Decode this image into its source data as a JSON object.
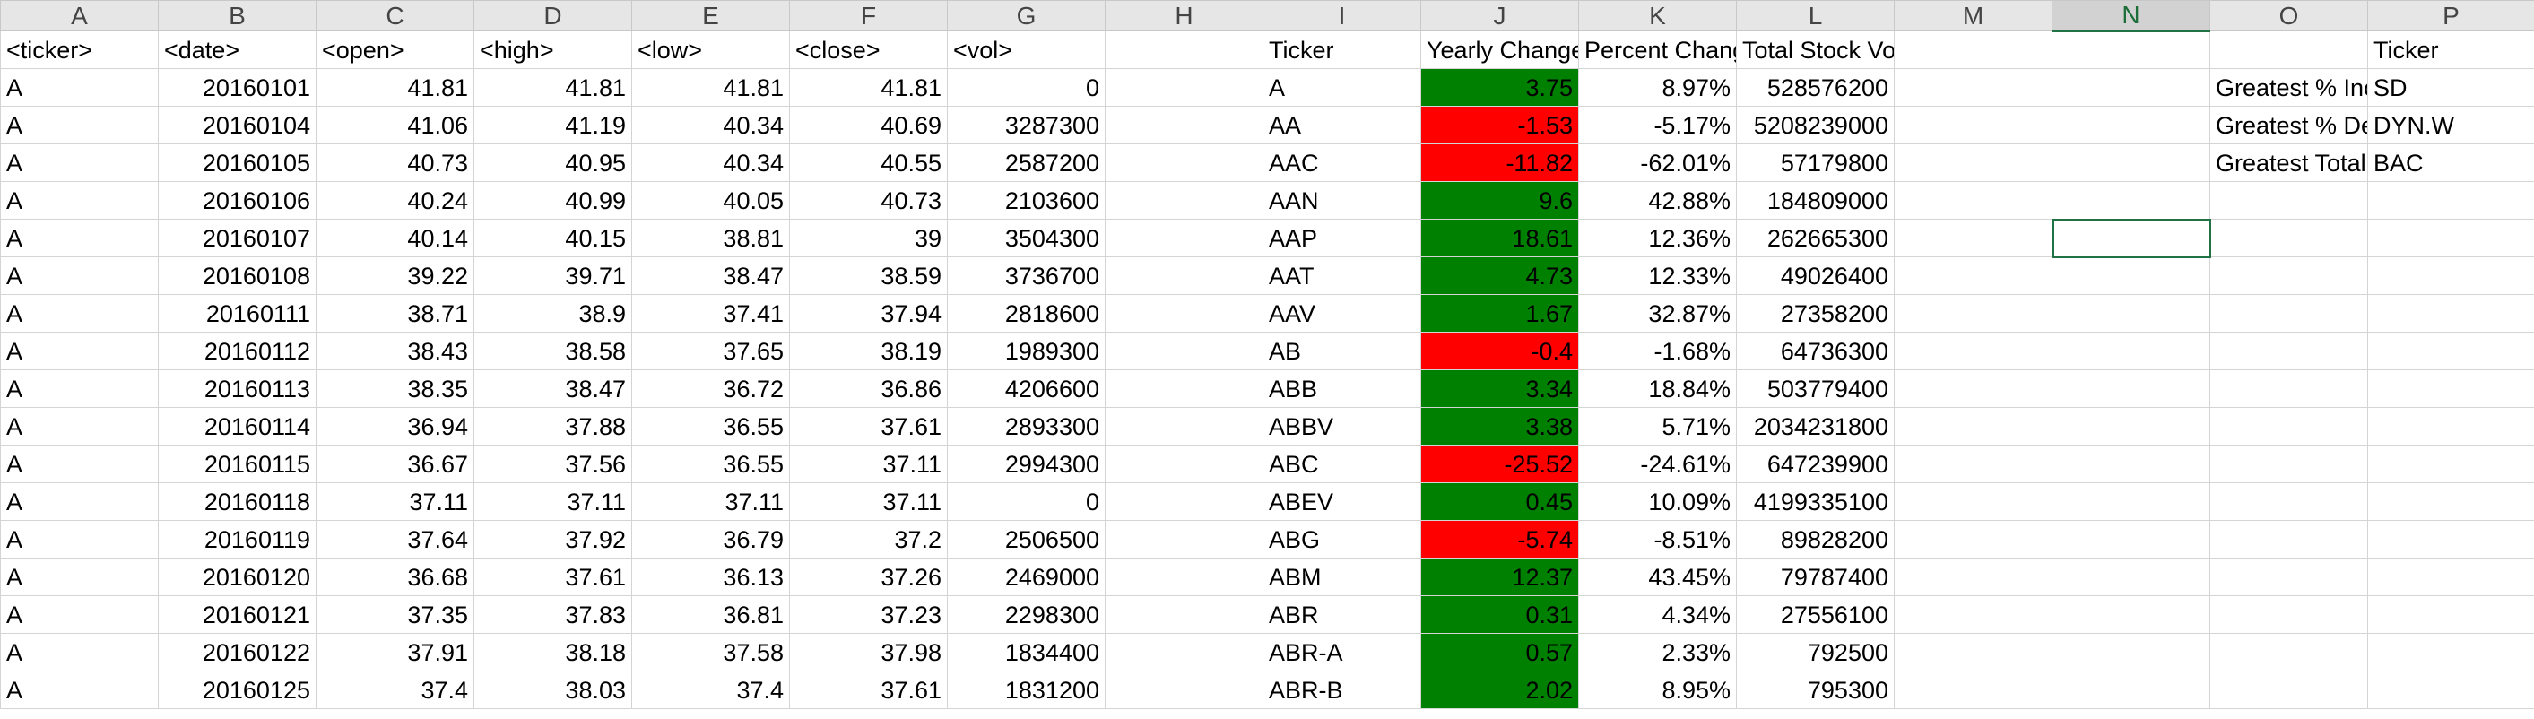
{
  "colors": {
    "positive_fill": "#008000",
    "negative_fill": "#ff0000",
    "selection": "#217346"
  },
  "columns": [
    "A",
    "B",
    "C",
    "D",
    "E",
    "F",
    "G",
    "H",
    "I",
    "J",
    "K",
    "L",
    "M",
    "N",
    "O",
    "P"
  ],
  "active_column": "N",
  "header_row": {
    "ticker": "<ticker>",
    "date": "<date>",
    "open": "<open>",
    "high": "<high>",
    "low": "<low>",
    "close": "<close>",
    "vol": "<vol>",
    "summary_ticker": "Ticker",
    "yearly_change": "Yearly Change",
    "percent_change": "Percent Change",
    "total_volume": "Total Stock Volume",
    "greatest_ticker": "Ticker"
  },
  "stock_rows": [
    [
      "A",
      "20160101",
      "41.81",
      "41.81",
      "41.81",
      "41.81",
      "0"
    ],
    [
      "A",
      "20160104",
      "41.06",
      "41.19",
      "40.34",
      "40.69",
      "3287300"
    ],
    [
      "A",
      "20160105",
      "40.73",
      "40.95",
      "40.34",
      "40.55",
      "2587200"
    ],
    [
      "A",
      "20160106",
      "40.24",
      "40.99",
      "40.05",
      "40.73",
      "2103600"
    ],
    [
      "A",
      "20160107",
      "40.14",
      "40.15",
      "38.81",
      "39",
      "3504300"
    ],
    [
      "A",
      "20160108",
      "39.22",
      "39.71",
      "38.47",
      "38.59",
      "3736700"
    ],
    [
      "A",
      "20160111",
      "38.71",
      "38.9",
      "37.41",
      "37.94",
      "2818600"
    ],
    [
      "A",
      "20160112",
      "38.43",
      "38.58",
      "37.65",
      "38.19",
      "1989300"
    ],
    [
      "A",
      "20160113",
      "38.35",
      "38.47",
      "36.72",
      "36.86",
      "4206600"
    ],
    [
      "A",
      "20160114",
      "36.94",
      "37.88",
      "36.55",
      "37.61",
      "2893300"
    ],
    [
      "A",
      "20160115",
      "36.67",
      "37.56",
      "36.55",
      "37.11",
      "2994300"
    ],
    [
      "A",
      "20160118",
      "37.11",
      "37.11",
      "37.11",
      "37.11",
      "0"
    ],
    [
      "A",
      "20160119",
      "37.64",
      "37.92",
      "36.79",
      "37.2",
      "2506500"
    ],
    [
      "A",
      "20160120",
      "36.68",
      "37.61",
      "36.13",
      "37.26",
      "2469000"
    ],
    [
      "A",
      "20160121",
      "37.35",
      "37.83",
      "36.81",
      "37.23",
      "2298300"
    ],
    [
      "A",
      "20160122",
      "37.91",
      "38.18",
      "37.58",
      "37.98",
      "1834400"
    ],
    [
      "A",
      "20160125",
      "37.4",
      "38.03",
      "37.4",
      "37.61",
      "1831200"
    ]
  ],
  "summary_rows": [
    [
      "A",
      "3.75",
      "8.97%",
      "528576200"
    ],
    [
      "AA",
      "-1.53",
      "-5.17%",
      "5208239000"
    ],
    [
      "AAC",
      "-11.82",
      "-62.01%",
      "57179800"
    ],
    [
      "AAN",
      "9.6",
      "42.88%",
      "184809000"
    ],
    [
      "AAP",
      "18.61",
      "12.36%",
      "262665300"
    ],
    [
      "AAT",
      "4.73",
      "12.33%",
      "49026400"
    ],
    [
      "AAV",
      "1.67",
      "32.87%",
      "27358200"
    ],
    [
      "AB",
      "-0.4",
      "-1.68%",
      "64736300"
    ],
    [
      "ABB",
      "3.34",
      "18.84%",
      "503779400"
    ],
    [
      "ABBV",
      "3.38",
      "5.71%",
      "2034231800"
    ],
    [
      "ABC",
      "-25.52",
      "-24.61%",
      "647239900"
    ],
    [
      "ABEV",
      "0.45",
      "10.09%",
      "4199335100"
    ],
    [
      "ABG",
      "-5.74",
      "-8.51%",
      "89828200"
    ],
    [
      "ABM",
      "12.37",
      "43.45%",
      "79787400"
    ],
    [
      "ABR",
      "0.31",
      "4.34%",
      "27556100"
    ],
    [
      "ABR-A",
      "0.57",
      "2.33%",
      "792500"
    ],
    [
      "ABR-B",
      "2.02",
      "8.95%",
      "795300"
    ]
  ],
  "greatest": [
    {
      "label": "Greatest % Increase",
      "ticker": "SD"
    },
    {
      "label": "Greatest % Decrease",
      "ticker": "DYN.W"
    },
    {
      "label": "Greatest Total Volume",
      "ticker": "BAC"
    }
  ]
}
